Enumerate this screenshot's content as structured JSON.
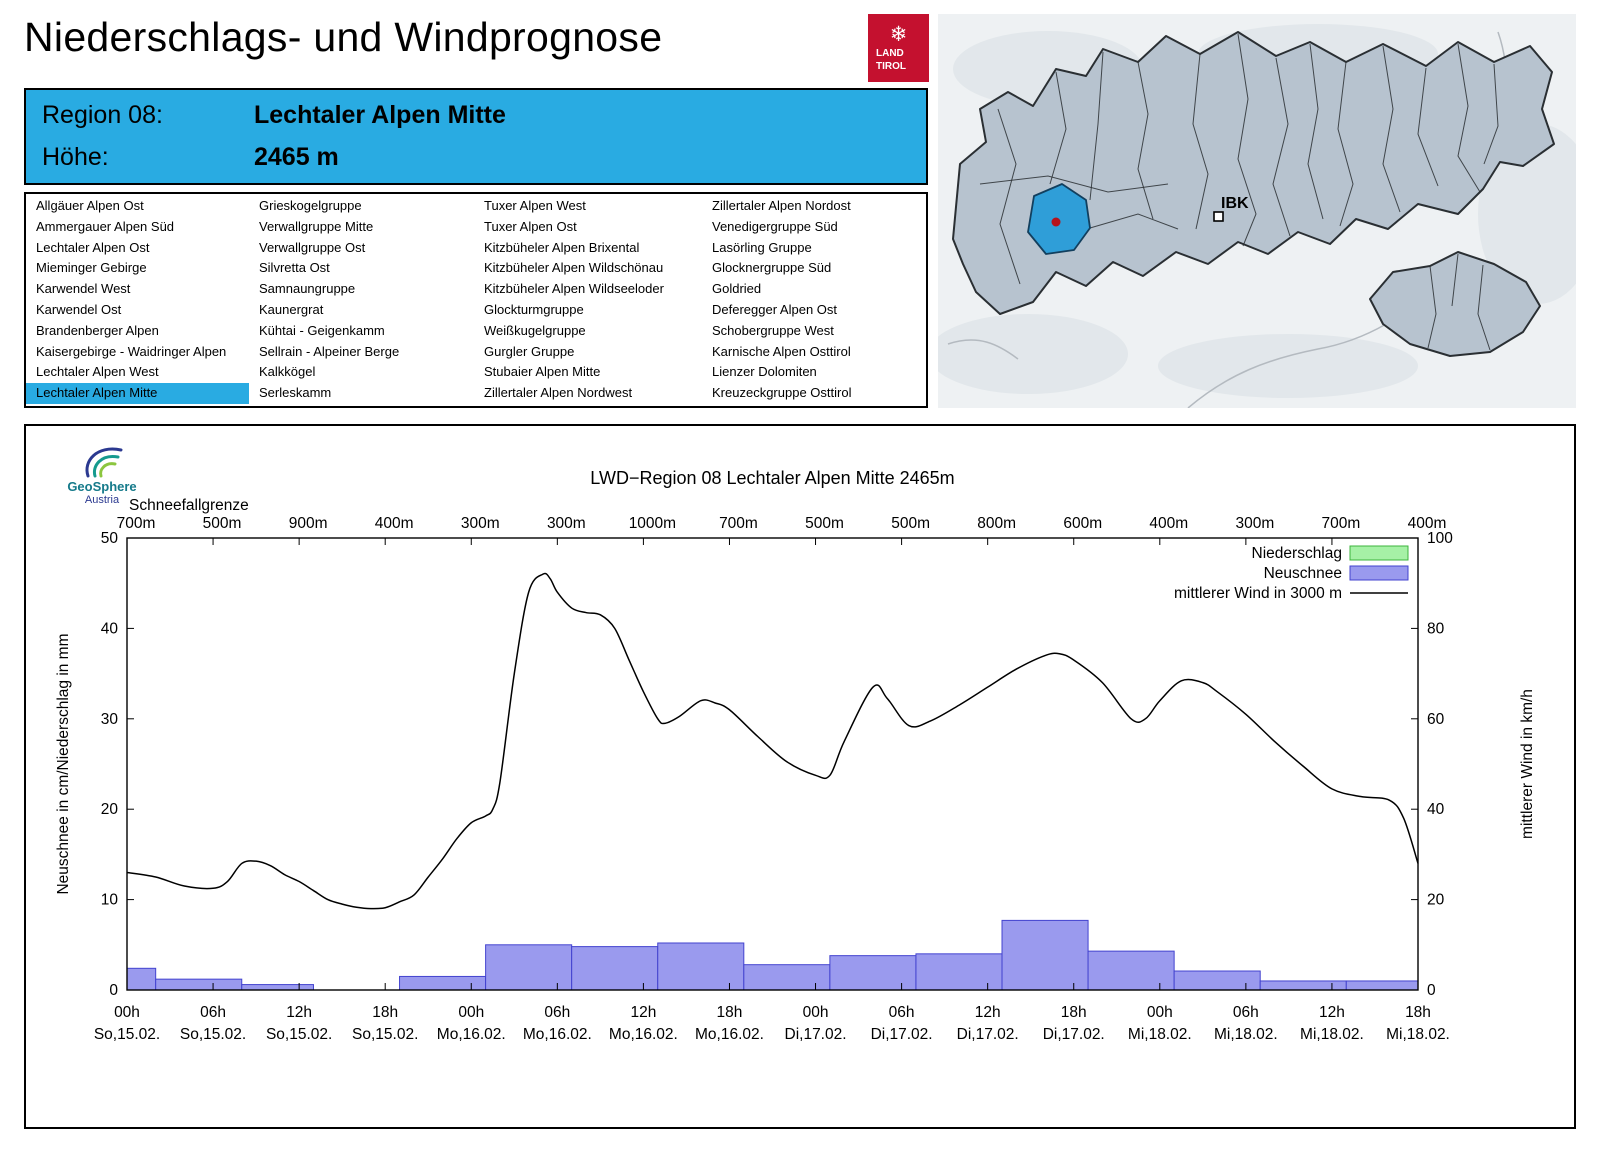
{
  "header": {
    "title": "Niederschlags- und Windprognose",
    "logo_line1": "LAND",
    "logo_line2": "TIROL"
  },
  "region_info": {
    "region_label": "Region 08:",
    "region_value": "Lechtaler Alpen Mitte",
    "altitude_label": "Höhe:",
    "altitude_value": "2465 m"
  },
  "region_list": {
    "selected": "Lechtaler Alpen Mitte",
    "columns": [
      [
        "Allgäuer Alpen Ost",
        "Ammergauer Alpen Süd",
        "Lechtaler Alpen Ost",
        "Mieminger Gebirge",
        "Karwendel West",
        "Karwendel Ost",
        "Brandenberger Alpen",
        "Kaisergebirge - Waidringer Alpen",
        "Lechtaler Alpen West",
        "Lechtaler Alpen Mitte"
      ],
      [
        "Grieskogelgruppe",
        "Verwallgruppe Mitte",
        "Verwallgruppe Ost",
        "Silvretta Ost",
        "Samnaungruppe",
        "Kaunergrat",
        "Kühtai - Geigenkamm",
        "Sellrain - Alpeiner Berge",
        "Kalkkögel",
        "Serleskamm"
      ],
      [
        "Tuxer Alpen West",
        "Tuxer Alpen Ost",
        "Kitzbüheler Alpen Brixental",
        "Kitzbüheler Alpen Wildschönau",
        "Kitzbüheler Alpen Wildseeloder",
        "Glockturmgruppe",
        "Weißkugelgruppe",
        "Gurgler Gruppe",
        "Stubaier Alpen Mitte",
        "Zillertaler Alpen Nordwest"
      ],
      [
        "Zillertaler Alpen Nordost",
        "Venedigergruppe Süd",
        "Lasörling Gruppe",
        "Glocknergruppe Süd",
        "Goldried",
        "Deferegger Alpen Ost",
        "Schobergruppe West",
        "Karnische Alpen Osttirol",
        "Lienzer Dolomiten",
        "Kreuzeckgruppe Osttirol"
      ]
    ]
  },
  "map": {
    "marker_label": "IBK"
  },
  "geosphere": {
    "name": "GeoSphere",
    "country": "Austria"
  },
  "colors": {
    "accent": "#29abe2",
    "logo_red": "#c4112f",
    "map_region": "#b7c3cf",
    "map_highlight": "#2f9ed8",
    "map_dot": "#b5121b"
  },
  "chart_data": {
    "type": "bar",
    "title": "LWD−Region 08 Lechtaler Alpen Mitte 2465m",
    "top_axis_label": "Schneefallgrenze",
    "snowline_labels": [
      "700m",
      "500m",
      "900m",
      "400m",
      "300m",
      "300m",
      "1000m",
      "700m",
      "500m",
      "500m",
      "800m",
      "600m",
      "400m",
      "300m",
      "700m",
      "400m"
    ],
    "x_ticks": [
      {
        "time": "00h",
        "date": "So,15.02."
      },
      {
        "time": "06h",
        "date": "So,15.02."
      },
      {
        "time": "12h",
        "date": "So,15.02."
      },
      {
        "time": "18h",
        "date": "So,15.02."
      },
      {
        "time": "00h",
        "date": "Mo,16.02."
      },
      {
        "time": "06h",
        "date": "Mo,16.02."
      },
      {
        "time": "12h",
        "date": "Mo,16.02."
      },
      {
        "time": "18h",
        "date": "Mo,16.02."
      },
      {
        "time": "00h",
        "date": "Di,17.02."
      },
      {
        "time": "06h",
        "date": "Di,17.02."
      },
      {
        "time": "12h",
        "date": "Di,17.02."
      },
      {
        "time": "18h",
        "date": "Di,17.02."
      },
      {
        "time": "00h",
        "date": "Mi,18.02."
      },
      {
        "time": "06h",
        "date": "Mi,18.02."
      },
      {
        "time": "12h",
        "date": "Mi,18.02."
      },
      {
        "time": "18h",
        "date": "Mi,18.02."
      }
    ],
    "x_range_hours": [
      0,
      90
    ],
    "ylabel_left": "Neuschnee in cm/Niederschlag in mm",
    "ylabel_right": "mittlerer Wind in km/h",
    "ylim_left": [
      0,
      50
    ],
    "ylim_right": [
      0,
      100
    ],
    "legend": [
      {
        "label": "Niederschlag",
        "type": "box",
        "fill": "#a6f1a6",
        "stroke": "#3cb43c"
      },
      {
        "label": "Neuschnee",
        "type": "box",
        "fill": "#9a9aee",
        "stroke": "#4343cf"
      },
      {
        "label": "mittlerer Wind in 3000 m",
        "type": "line",
        "stroke": "#000000"
      }
    ],
    "niederschlag_bars": [],
    "neuschnee_bars": [
      {
        "start": 0,
        "width": 2,
        "value": 2.4
      },
      {
        "start": 2,
        "width": 6,
        "value": 1.2
      },
      {
        "start": 8,
        "width": 5,
        "value": 0.6
      },
      {
        "start": 19,
        "width": 6,
        "value": 1.5
      },
      {
        "start": 25,
        "width": 6,
        "value": 5.0
      },
      {
        "start": 31,
        "width": 6,
        "value": 4.8
      },
      {
        "start": 37,
        "width": 6,
        "value": 5.2
      },
      {
        "start": 43,
        "width": 6,
        "value": 2.8
      },
      {
        "start": 49,
        "width": 6,
        "value": 3.8
      },
      {
        "start": 55,
        "width": 6,
        "value": 4.0
      },
      {
        "start": 61,
        "width": 6,
        "value": 7.7
      },
      {
        "start": 67,
        "width": 6,
        "value": 4.3
      },
      {
        "start": 73,
        "width": 6,
        "value": 2.1
      },
      {
        "start": 79,
        "width": 6,
        "value": 1.0
      },
      {
        "start": 85,
        "width": 5,
        "value": 1.0
      }
    ],
    "wind_series": {
      "name": "mittlerer Wind in 3000 m",
      "unit": "km/h",
      "color": "#000000",
      "points": [
        [
          0,
          26
        ],
        [
          2,
          25
        ],
        [
          4,
          23
        ],
        [
          6,
          22.5
        ],
        [
          7,
          24
        ],
        [
          8,
          28
        ],
        [
          9,
          28.5
        ],
        [
          10,
          27.5
        ],
        [
          11,
          25.5
        ],
        [
          12,
          24
        ],
        [
          13,
          22
        ],
        [
          14,
          20
        ],
        [
          15,
          19
        ],
        [
          16,
          18.3
        ],
        [
          17,
          18
        ],
        [
          18,
          18.2
        ],
        [
          19,
          19.5
        ],
        [
          20,
          21
        ],
        [
          21,
          25
        ],
        [
          22,
          29
        ],
        [
          23,
          33.5
        ],
        [
          24,
          37
        ],
        [
          25,
          38.5
        ],
        [
          25.5,
          40
        ],
        [
          26,
          46
        ],
        [
          27,
          70
        ],
        [
          28,
          88
        ],
        [
          29,
          92
        ],
        [
          29.5,
          91
        ],
        [
          30,
          88
        ],
        [
          31,
          84.5
        ],
        [
          32,
          83.5
        ],
        [
          33,
          83
        ],
        [
          34,
          80
        ],
        [
          35,
          73
        ],
        [
          36,
          66
        ],
        [
          37,
          60
        ],
        [
          37.5,
          59
        ],
        [
          38.5,
          60.5
        ],
        [
          40,
          64
        ],
        [
          41,
          63.5
        ],
        [
          42,
          62
        ],
        [
          44,
          56
        ],
        [
          46,
          50.5
        ],
        [
          48,
          47.5
        ],
        [
          49,
          47.5
        ],
        [
          50,
          55
        ],
        [
          52,
          67
        ],
        [
          53,
          64.5
        ],
        [
          54.5,
          58.5
        ],
        [
          56,
          59.5
        ],
        [
          58,
          63
        ],
        [
          60,
          67
        ],
        [
          62,
          71
        ],
        [
          64,
          74
        ],
        [
          65,
          74.4
        ],
        [
          66,
          73
        ],
        [
          68,
          68
        ],
        [
          70,
          60
        ],
        [
          71,
          60
        ],
        [
          72,
          64
        ],
        [
          73.5,
          68.4
        ],
        [
          75,
          68
        ],
        [
          76,
          66
        ],
        [
          78,
          61
        ],
        [
          80,
          55
        ],
        [
          82,
          49.5
        ],
        [
          84,
          44.5
        ],
        [
          86,
          42.8
        ],
        [
          88,
          42
        ],
        [
          89,
          38
        ],
        [
          90,
          28
        ]
      ]
    }
  }
}
